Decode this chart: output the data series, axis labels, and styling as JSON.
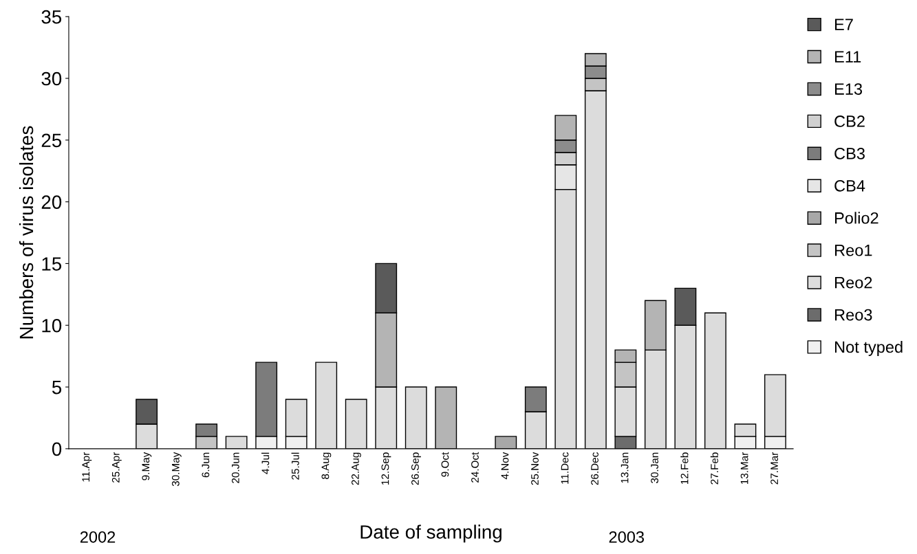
{
  "chart_data": {
    "type": "bar",
    "stacked": true,
    "xlabel": "Date of sampling",
    "ylabel": "Numbers of virus isolates",
    "categories": [
      "11.Apr",
      "25.Apr",
      "9.May",
      "30.May",
      "6.Jun",
      "20.Jun",
      "4.Jul",
      "25.Jul",
      "8.Aug",
      "22.Aug",
      "12.Sep",
      "26.Sep",
      "9.Oct",
      "24.Oct",
      "4.Nov",
      "25.Nov",
      "11.Dec",
      "26.Dec",
      "13.Jan",
      "30.Jan",
      "12.Feb",
      "27.Feb",
      "13.Mar",
      "27.Mar"
    ],
    "series": [
      {
        "name": "Not typed",
        "color": "#f0f0f0",
        "values": [
          0,
          0,
          0,
          0,
          0,
          0,
          1,
          1,
          0,
          0,
          0,
          0,
          0,
          0,
          0,
          0,
          0,
          0,
          0,
          0,
          0,
          0,
          1,
          1
        ]
      },
      {
        "name": "Reo3",
        "color": "#6c6c6c",
        "values": [
          0,
          0,
          0,
          0,
          0,
          0,
          0,
          0,
          0,
          0,
          0,
          0,
          0,
          0,
          0,
          0,
          0,
          0,
          1,
          0,
          0,
          0,
          0,
          0
        ]
      },
      {
        "name": "Reo2",
        "color": "#dcdcdc",
        "values": [
          0,
          0,
          2,
          0,
          0,
          1,
          0,
          3,
          7,
          4,
          5,
          5,
          0,
          0,
          0,
          3,
          21,
          29,
          4,
          8,
          10,
          11,
          1,
          5
        ]
      },
      {
        "name": "Reo1",
        "color": "#c4c4c4",
        "values": [
          0,
          0,
          0,
          0,
          1,
          0,
          0,
          0,
          0,
          0,
          0,
          0,
          0,
          0,
          0,
          0,
          0,
          1,
          2,
          0,
          0,
          0,
          0,
          0
        ]
      },
      {
        "name": "Polio2",
        "color": "#a8a8a8",
        "values": [
          0,
          0,
          0,
          0,
          0,
          0,
          0,
          0,
          0,
          0,
          0,
          0,
          0,
          0,
          1,
          0,
          0,
          0,
          0,
          0,
          0,
          0,
          0,
          0
        ]
      },
      {
        "name": "CB4",
        "color": "#e6e6e6",
        "values": [
          0,
          0,
          0,
          0,
          0,
          0,
          0,
          0,
          0,
          0,
          0,
          0,
          0,
          0,
          0,
          0,
          2,
          0,
          0,
          0,
          0,
          0,
          0,
          0
        ]
      },
      {
        "name": "CB3",
        "color": "#7c7c7c",
        "values": [
          0,
          0,
          0,
          0,
          1,
          0,
          6,
          0,
          0,
          0,
          0,
          0,
          0,
          0,
          0,
          2,
          0,
          0,
          0,
          0,
          0,
          0,
          0,
          0
        ]
      },
      {
        "name": "CB2",
        "color": "#d0d0d0",
        "values": [
          0,
          0,
          0,
          0,
          0,
          0,
          0,
          0,
          0,
          0,
          0,
          0,
          0,
          0,
          0,
          0,
          1,
          0,
          0,
          0,
          0,
          0,
          0,
          0
        ]
      },
      {
        "name": "E13",
        "color": "#8c8c8c",
        "values": [
          0,
          0,
          0,
          0,
          0,
          0,
          0,
          0,
          0,
          0,
          0,
          0,
          0,
          0,
          0,
          0,
          1,
          1,
          0,
          0,
          0,
          0,
          0,
          0
        ]
      },
      {
        "name": "E11",
        "color": "#b4b4b4",
        "values": [
          0,
          0,
          0,
          0,
          0,
          0,
          0,
          0,
          0,
          0,
          6,
          0,
          5,
          0,
          0,
          0,
          2,
          1,
          1,
          4,
          0,
          0,
          0,
          0
        ]
      },
      {
        "name": "E7",
        "color": "#5a5a5a",
        "values": [
          0,
          0,
          2,
          0,
          0,
          0,
          0,
          0,
          0,
          0,
          4,
          0,
          0,
          0,
          0,
          0,
          0,
          0,
          0,
          0,
          3,
          0,
          0,
          0
        ]
      }
    ],
    "ylim": [
      0,
      35
    ],
    "yticks": [
      0,
      5,
      10,
      15,
      20,
      25,
      30,
      35
    ],
    "grid": false,
    "legend": "right",
    "annotations": [
      "2002",
      "2003"
    ]
  }
}
